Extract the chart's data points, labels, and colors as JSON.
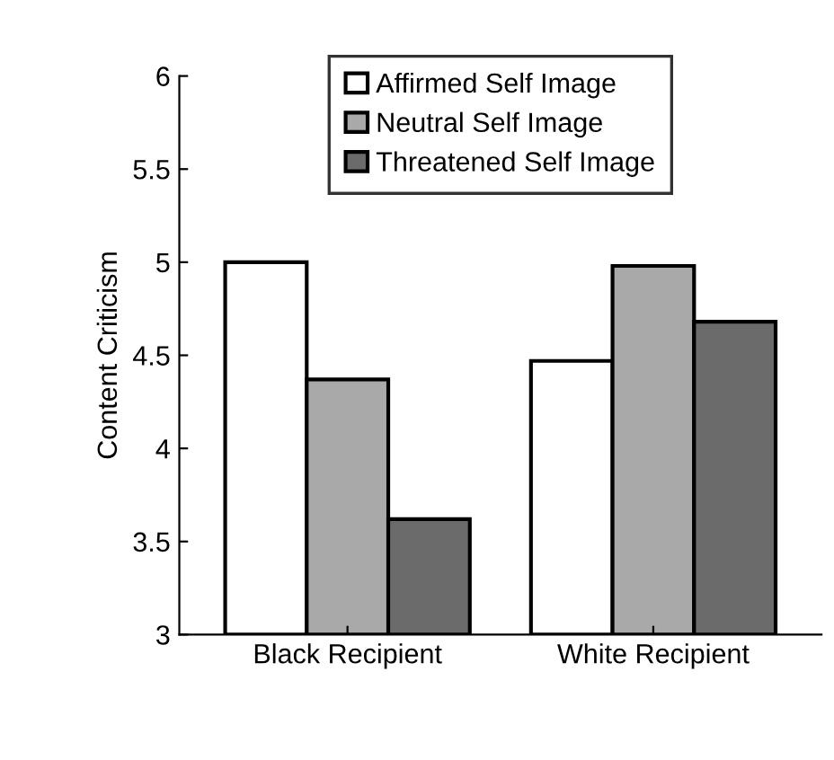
{
  "chart_data": {
    "type": "bar",
    "ylabel": "Content Criticism",
    "categories": [
      "Black Recipient",
      "White Recipient"
    ],
    "series": [
      {
        "name": "Affirmed Self Image",
        "color": "#ffffff",
        "values": [
          5.0,
          4.47
        ]
      },
      {
        "name": "Neutral Self Image",
        "color": "#a9a9a9",
        "values": [
          4.37,
          4.98
        ]
      },
      {
        "name": "Threatened Self Image",
        "color": "#6b6b6b",
        "values": [
          3.62,
          4.68
        ]
      }
    ],
    "ylim": [
      3,
      6
    ],
    "yticks": [
      3,
      3.5,
      4,
      4.5,
      5,
      5.5,
      6
    ],
    "legend": "top",
    "grid": false
  }
}
